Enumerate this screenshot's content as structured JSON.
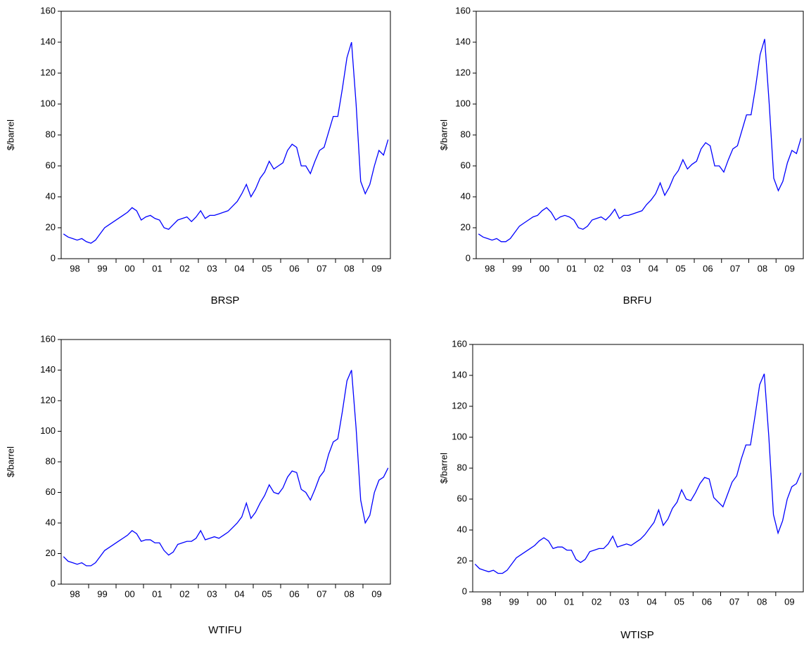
{
  "chart_data": [
    {
      "type": "line",
      "xlabel": "BRSP",
      "ylabel": "$/barrel",
      "color": "#0000ff",
      "ylim": [
        0,
        160
      ],
      "yticks": [
        0,
        20,
        40,
        60,
        80,
        100,
        120,
        140,
        160
      ],
      "categories": [
        null,
        null,
        null,
        "98",
        null,
        null,
        null,
        null,
        null,
        "99",
        null,
        null,
        null,
        null,
        null,
        "00",
        null,
        null,
        null,
        null,
        null,
        "01",
        null,
        null,
        null,
        null,
        null,
        "02",
        null,
        null,
        null,
        null,
        null,
        "03",
        null,
        null,
        null,
        null,
        null,
        "04",
        null,
        null,
        null,
        null,
        null,
        "05",
        null,
        null,
        null,
        null,
        null,
        "06",
        null,
        null,
        null,
        null,
        null,
        "07",
        null,
        null,
        null,
        null,
        null,
        "08",
        null,
        null,
        null,
        null,
        null,
        "09",
        null,
        null
      ],
      "values": [
        16,
        14,
        13,
        12,
        13,
        11,
        10,
        12,
        16,
        20,
        22,
        24,
        26,
        28,
        30,
        33,
        31,
        25,
        27,
        28,
        26,
        25,
        20,
        19,
        22,
        25,
        26,
        27,
        24,
        27,
        31,
        26,
        28,
        28,
        29,
        30,
        31,
        34,
        37,
        42,
        48,
        40,
        45,
        52,
        56,
        63,
        58,
        60,
        62,
        70,
        74,
        72,
        60,
        60,
        55,
        63,
        70,
        72,
        82,
        92,
        92,
        110,
        130,
        140,
        100,
        50,
        42,
        48,
        60,
        70,
        67,
        77
      ]
    },
    {
      "type": "line",
      "xlabel": "BRFU",
      "ylabel": "$/barrel",
      "color": "#0000ff",
      "ylim": [
        0,
        160
      ],
      "yticks": [
        0,
        20,
        40,
        60,
        80,
        100,
        120,
        140,
        160
      ],
      "categories": [
        null,
        null,
        null,
        "98",
        null,
        null,
        null,
        null,
        null,
        "99",
        null,
        null,
        null,
        null,
        null,
        "00",
        null,
        null,
        null,
        null,
        null,
        "01",
        null,
        null,
        null,
        null,
        null,
        "02",
        null,
        null,
        null,
        null,
        null,
        "03",
        null,
        null,
        null,
        null,
        null,
        "04",
        null,
        null,
        null,
        null,
        null,
        "05",
        null,
        null,
        null,
        null,
        null,
        "06",
        null,
        null,
        null,
        null,
        null,
        "07",
        null,
        null,
        null,
        null,
        null,
        "08",
        null,
        null,
        null,
        null,
        null,
        "09",
        null,
        null
      ],
      "values": [
        16,
        14,
        13,
        12,
        13,
        11,
        11,
        13,
        17,
        21,
        23,
        25,
        27,
        28,
        31,
        33,
        30,
        25,
        27,
        28,
        27,
        25,
        20,
        19,
        21,
        25,
        26,
        27,
        25,
        28,
        32,
        26,
        28,
        28,
        29,
        30,
        31,
        35,
        38,
        42,
        49,
        41,
        46,
        53,
        57,
        64,
        58,
        61,
        63,
        71,
        75,
        73,
        60,
        60,
        56,
        64,
        71,
        73,
        83,
        93,
        93,
        111,
        132,
        142,
        100,
        52,
        44,
        50,
        62,
        70,
        68,
        78
      ]
    },
    {
      "type": "line",
      "xlabel": "WTIFU",
      "ylabel": "$/barrel",
      "color": "#0000ff",
      "ylim": [
        0,
        160
      ],
      "yticks": [
        0,
        20,
        40,
        60,
        80,
        100,
        120,
        140,
        160
      ],
      "categories": [
        null,
        null,
        null,
        "98",
        null,
        null,
        null,
        null,
        null,
        "99",
        null,
        null,
        null,
        null,
        null,
        "00",
        null,
        null,
        null,
        null,
        null,
        "01",
        null,
        null,
        null,
        null,
        null,
        "02",
        null,
        null,
        null,
        null,
        null,
        "03",
        null,
        null,
        null,
        null,
        null,
        "04",
        null,
        null,
        null,
        null,
        null,
        "05",
        null,
        null,
        null,
        null,
        null,
        "06",
        null,
        null,
        null,
        null,
        null,
        "07",
        null,
        null,
        null,
        null,
        null,
        "08",
        null,
        null,
        null,
        null,
        null,
        "09",
        null,
        null
      ],
      "values": [
        18,
        15,
        14,
        13,
        14,
        12,
        12,
        14,
        18,
        22,
        24,
        26,
        28,
        30,
        32,
        35,
        33,
        28,
        29,
        29,
        27,
        27,
        22,
        19,
        21,
        26,
        27,
        28,
        28,
        30,
        35,
        29,
        30,
        31,
        30,
        32,
        34,
        37,
        40,
        44,
        53,
        43,
        47,
        53,
        58,
        65,
        60,
        59,
        63,
        70,
        74,
        73,
        62,
        60,
        55,
        62,
        70,
        74,
        85,
        93,
        95,
        113,
        133,
        140,
        102,
        55,
        40,
        45,
        60,
        68,
        70,
        76
      ]
    },
    {
      "type": "line",
      "xlabel": "WTISP",
      "ylabel": "$/barrel",
      "color": "#0000ff",
      "ylim": [
        0,
        160
      ],
      "yticks": [
        0,
        20,
        40,
        60,
        80,
        100,
        120,
        140,
        160
      ],
      "categories": [
        null,
        null,
        null,
        "98",
        null,
        null,
        null,
        null,
        null,
        "99",
        null,
        null,
        null,
        null,
        null,
        "00",
        null,
        null,
        null,
        null,
        null,
        "01",
        null,
        null,
        null,
        null,
        null,
        "02",
        null,
        null,
        null,
        null,
        null,
        "03",
        null,
        null,
        null,
        null,
        null,
        "04",
        null,
        null,
        null,
        null,
        null,
        "05",
        null,
        null,
        null,
        null,
        null,
        "06",
        null,
        null,
        null,
        null,
        null,
        "07",
        null,
        null,
        null,
        null,
        null,
        "08",
        null,
        null,
        null,
        null,
        null,
        "09",
        null,
        null
      ],
      "values": [
        18,
        15,
        14,
        13,
        14,
        12,
        12,
        14,
        18,
        22,
        24,
        26,
        28,
        30,
        33,
        35,
        33,
        28,
        29,
        29,
        27,
        27,
        21,
        19,
        21,
        26,
        27,
        28,
        28,
        31,
        36,
        29,
        30,
        31,
        30,
        32,
        34,
        37,
        41,
        45,
        53,
        43,
        47,
        54,
        58,
        66,
        60,
        59,
        64,
        70,
        74,
        73,
        61,
        58,
        55,
        63,
        71,
        75,
        86,
        95,
        95,
        114,
        134,
        141,
        100,
        50,
        38,
        46,
        60,
        68,
        70,
        77
      ]
    }
  ]
}
